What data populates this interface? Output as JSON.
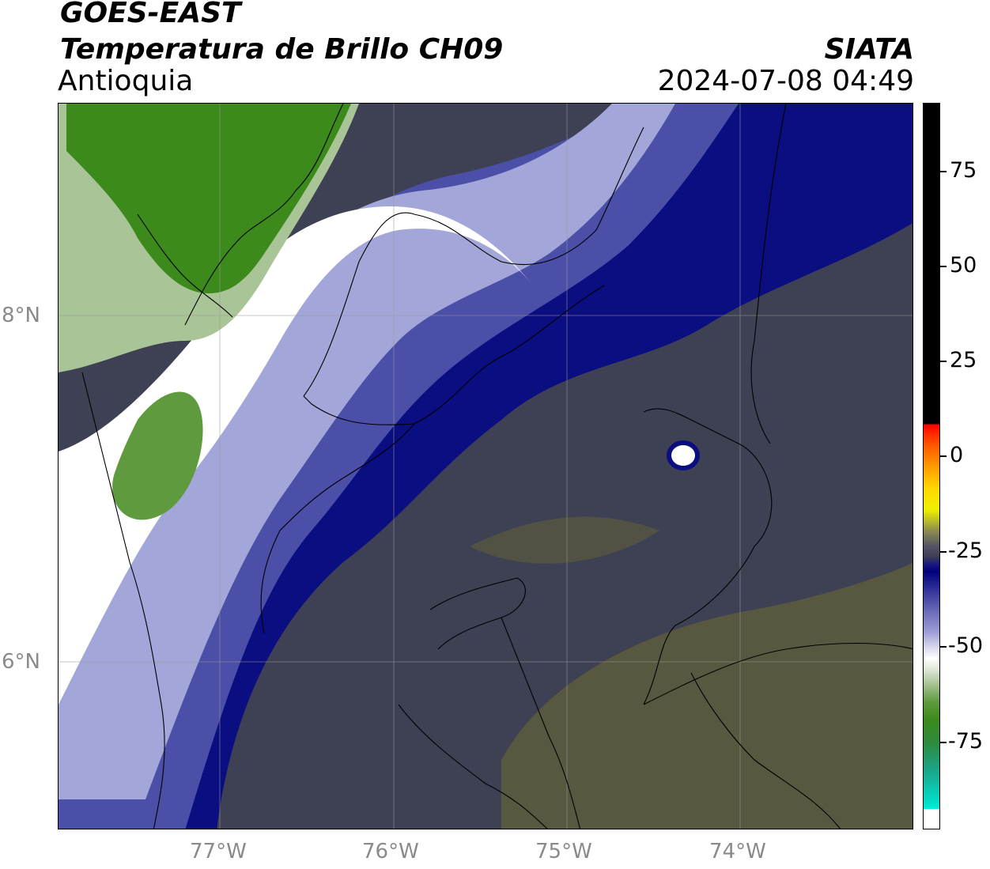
{
  "header": {
    "satellite": "GOES-EAST",
    "product": "Temperatura de Brillo CH09",
    "region": "Antioquia",
    "brand": "SIATA",
    "datetime": "2024-07-08 04:49"
  },
  "axes": {
    "latitude_labels": [
      "8°N",
      "6°N"
    ],
    "longitude_labels": [
      "77°W",
      "76°W",
      "75°W",
      "74°W"
    ]
  },
  "colorbar": {
    "tick_labels": [
      "75",
      "50",
      "25",
      "0",
      "-25",
      "-50",
      "-75"
    ],
    "range": [
      -95,
      90
    ]
  },
  "colors": {
    "warm_background": "#3e4053",
    "olive_band": "#5b5b3e",
    "deep_blue": "#0b0e80",
    "mid_blue": "#4b4fa8",
    "light_blue": "#a3a6d8",
    "white": "#ffffff",
    "green_light": "#a9c496",
    "green_dark": "#3b8a1b"
  }
}
